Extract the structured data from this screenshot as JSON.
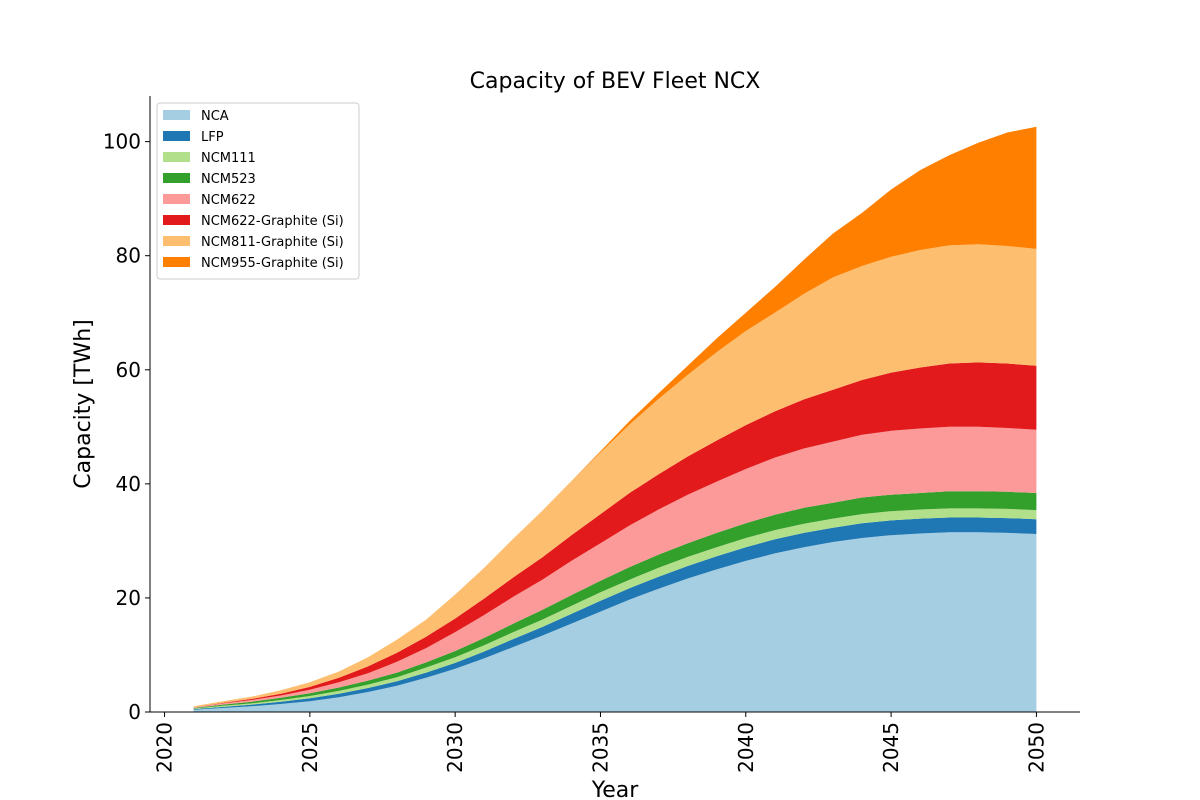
{
  "chart_data": {
    "type": "area",
    "title": "Capacity of BEV Fleet NCX",
    "xlabel": "Year",
    "ylabel": "Capacity [TWh]",
    "xlim": [
      2019.5,
      2051.5
    ],
    "ylim": [
      0,
      108
    ],
    "xticks": [
      "2020",
      "2025",
      "2030",
      "2035",
      "2040",
      "2045",
      "2050"
    ],
    "yticks": [
      "0",
      "20",
      "40",
      "60",
      "80",
      "100"
    ],
    "legend_position": "upper-left",
    "grid": false,
    "x": [
      2021,
      2022,
      2023,
      2024,
      2025,
      2026,
      2027,
      2028,
      2029,
      2030,
      2031,
      2032,
      2033,
      2034,
      2035,
      2036,
      2037,
      2038,
      2039,
      2040,
      2041,
      2042,
      2043,
      2044,
      2045,
      2046,
      2047,
      2048,
      2049,
      2050
    ],
    "series": [
      {
        "name": "NCA",
        "color": "#a6cee3",
        "values": [
          0.4,
          0.7,
          1.0,
          1.4,
          1.9,
          2.6,
          3.5,
          4.6,
          6.0,
          7.6,
          9.4,
          11.4,
          13.4,
          15.5,
          17.6,
          19.7,
          21.6,
          23.4,
          25.0,
          26.5,
          27.8,
          28.9,
          29.8,
          30.5,
          31.0,
          31.3,
          31.5,
          31.5,
          31.4,
          31.2
        ]
      },
      {
        "name": "LFP",
        "color": "#1f78b4",
        "values": [
          0.1,
          0.2,
          0.3,
          0.4,
          0.5,
          0.6,
          0.7,
          0.8,
          0.9,
          1.0,
          1.2,
          1.4,
          1.5,
          1.7,
          1.9,
          2.0,
          2.1,
          2.2,
          2.3,
          2.4,
          2.5,
          2.5,
          2.5,
          2.6,
          2.6,
          2.6,
          2.6,
          2.6,
          2.6,
          2.6
        ]
      },
      {
        "name": "NCM111",
        "color": "#b2df8a",
        "values": [
          0.1,
          0.2,
          0.2,
          0.3,
          0.4,
          0.5,
          0.6,
          0.7,
          0.9,
          1.0,
          1.1,
          1.2,
          1.3,
          1.4,
          1.5,
          1.5,
          1.6,
          1.6,
          1.6,
          1.6,
          1.6,
          1.6,
          1.6,
          1.6,
          1.6,
          1.6,
          1.6,
          1.6,
          1.6,
          1.6
        ]
      },
      {
        "name": "NCM523",
        "color": "#33a02c",
        "values": [
          0.1,
          0.2,
          0.3,
          0.4,
          0.5,
          0.6,
          0.7,
          0.8,
          0.9,
          1.1,
          1.3,
          1.5,
          1.7,
          1.9,
          2.0,
          2.2,
          2.3,
          2.4,
          2.5,
          2.6,
          2.7,
          2.8,
          2.8,
          2.9,
          2.9,
          2.9,
          3.0,
          3.0,
          3.0,
          3.0
        ]
      },
      {
        "name": "NCM622",
        "color": "#fb9a99",
        "values": [
          0.1,
          0.2,
          0.3,
          0.4,
          0.6,
          0.9,
          1.3,
          1.9,
          2.5,
          3.3,
          4.0,
          4.7,
          5.3,
          6.0,
          6.6,
          7.3,
          7.9,
          8.5,
          9.0,
          9.5,
          10.0,
          10.4,
          10.7,
          11.0,
          11.2,
          11.3,
          11.3,
          11.3,
          11.2,
          11.1
        ]
      },
      {
        "name": "NCM622-Graphite (Si)",
        "color": "#e31a1c",
        "values": [
          0.0,
          0.1,
          0.2,
          0.3,
          0.5,
          0.8,
          1.2,
          1.6,
          2.0,
          2.4,
          2.9,
          3.4,
          3.9,
          4.5,
          5.1,
          5.7,
          6.2,
          6.7,
          7.2,
          7.7,
          8.1,
          8.6,
          9.1,
          9.6,
          10.2,
          10.7,
          11.1,
          11.3,
          11.3,
          11.2
        ]
      },
      {
        "name": "NCM811-Graphite (Si)",
        "color": "#fdbf6f",
        "values": [
          0.2,
          0.3,
          0.4,
          0.6,
          0.8,
          1.1,
          1.6,
          2.3,
          3.0,
          4.2,
          5.4,
          6.8,
          8.2,
          9.5,
          10.8,
          12.0,
          13.2,
          14.3,
          15.5,
          16.5,
          17.3,
          18.5,
          19.7,
          20.0,
          20.3,
          20.6,
          20.7,
          20.7,
          20.6,
          20.5
        ]
      },
      {
        "name": "NCM955-Graphite (Si)",
        "color": "#ff7f00",
        "values": [
          0,
          0,
          0,
          0,
          0,
          0,
          0,
          0,
          0,
          0,
          0,
          0,
          0,
          0,
          0.2,
          0.6,
          1.0,
          1.6,
          2.4,
          3.2,
          4.5,
          6.0,
          7.7,
          9.3,
          11.8,
          14.0,
          15.8,
          17.8,
          19.9,
          21.4
        ]
      }
    ]
  }
}
